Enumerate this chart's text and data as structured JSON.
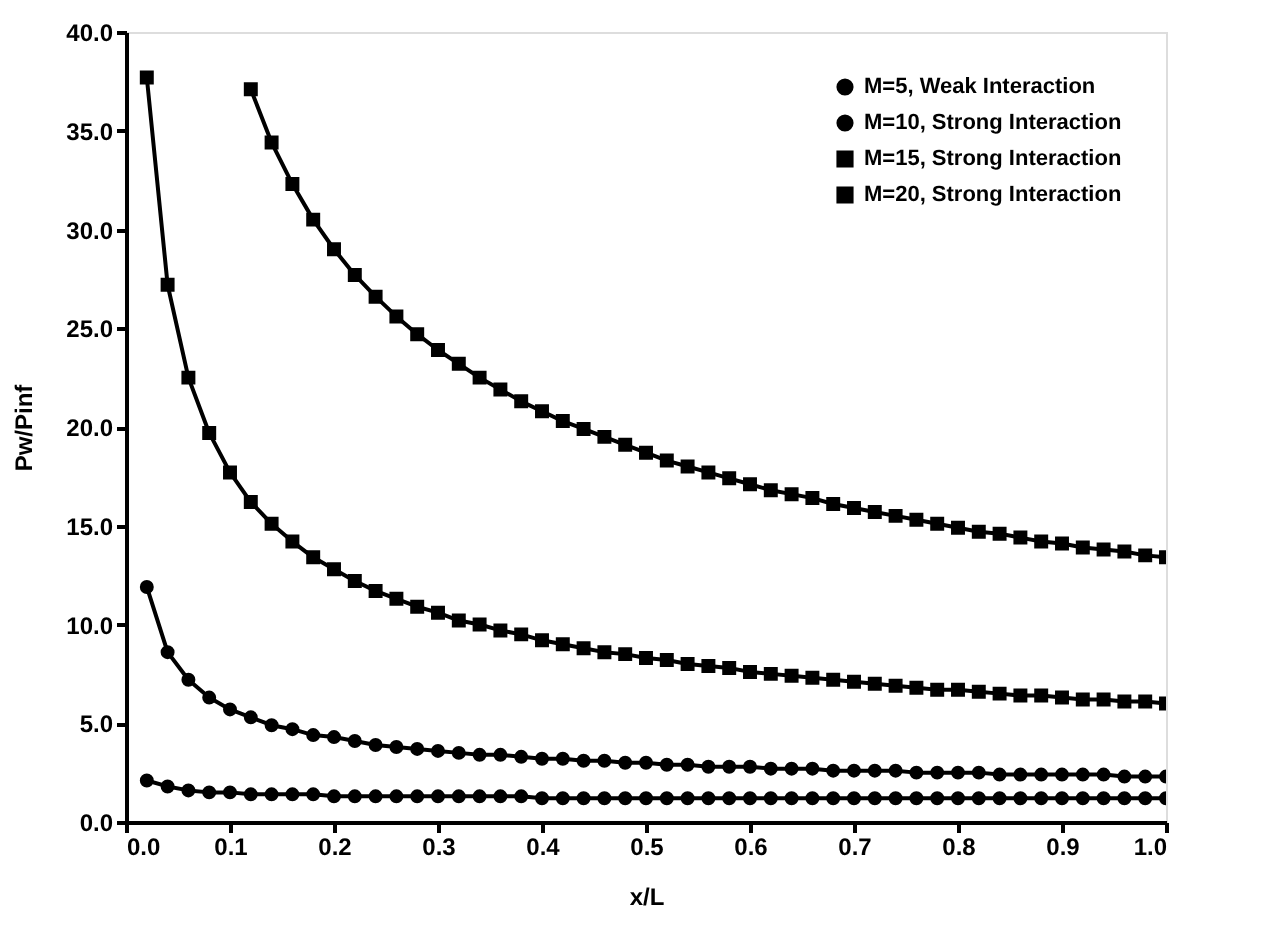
{
  "chart_data": {
    "type": "line",
    "xlabel": "x/L",
    "ylabel": "Pw/Pinf",
    "x": [
      0.02,
      0.04,
      0.06,
      0.08,
      0.1,
      0.12,
      0.14,
      0.16,
      0.18,
      0.2,
      0.22,
      0.24,
      0.26,
      0.28,
      0.3,
      0.32,
      0.34,
      0.36,
      0.38,
      0.4,
      0.42,
      0.44,
      0.46,
      0.48,
      0.5,
      0.52,
      0.54,
      0.56,
      0.58,
      0.6,
      0.62,
      0.64,
      0.66,
      0.68,
      0.7,
      0.72,
      0.74,
      0.76,
      0.78,
      0.8,
      0.82,
      0.84,
      0.86,
      0.88,
      0.9,
      0.92,
      0.94,
      0.96,
      0.98,
      1.0
    ],
    "series": [
      {
        "name": "M=5, Weak Interaction",
        "color": "#000000",
        "marker": "circle",
        "values": [
          2.1,
          1.8,
          1.6,
          1.5,
          1.5,
          1.4,
          1.4,
          1.4,
          1.4,
          1.3,
          1.3,
          1.3,
          1.3,
          1.3,
          1.3,
          1.3,
          1.3,
          1.3,
          1.3,
          1.2,
          1.2,
          1.2,
          1.2,
          1.2,
          1.2,
          1.2,
          1.2,
          1.2,
          1.2,
          1.2,
          1.2,
          1.2,
          1.2,
          1.2,
          1.2,
          1.2,
          1.2,
          1.2,
          1.2,
          1.2,
          1.2,
          1.2,
          1.2,
          1.2,
          1.2,
          1.2,
          1.2,
          1.2,
          1.2,
          1.2
        ]
      },
      {
        "name": "M=10, Strong Interaction",
        "color": "#000000",
        "marker": "circle",
        "values": [
          11.9,
          8.6,
          7.2,
          6.3,
          5.7,
          5.3,
          4.9,
          4.7,
          4.4,
          4.3,
          4.1,
          3.9,
          3.8,
          3.7,
          3.6,
          3.5,
          3.4,
          3.4,
          3.3,
          3.2,
          3.2,
          3.1,
          3.1,
          3.0,
          3.0,
          2.9,
          2.9,
          2.8,
          2.8,
          2.8,
          2.7,
          2.7,
          2.7,
          2.6,
          2.6,
          2.6,
          2.6,
          2.5,
          2.5,
          2.5,
          2.5,
          2.4,
          2.4,
          2.4,
          2.4,
          2.4,
          2.4,
          2.3,
          2.3,
          2.3
        ]
      },
      {
        "name": "M=15, Strong Interaction",
        "color": "#000000",
        "marker": "square",
        "values": [
          37.7,
          27.2,
          22.5,
          19.7,
          17.7,
          16.2,
          15.1,
          14.2,
          13.4,
          12.8,
          12.2,
          11.7,
          11.3,
          10.9,
          10.6,
          10.2,
          10.0,
          9.7,
          9.5,
          9.2,
          9.0,
          8.8,
          8.6,
          8.5,
          8.3,
          8.2,
          8.0,
          7.9,
          7.8,
          7.6,
          7.5,
          7.4,
          7.3,
          7.2,
          7.1,
          7.0,
          6.9,
          6.8,
          6.7,
          6.7,
          6.6,
          6.5,
          6.4,
          6.4,
          6.3,
          6.2,
          6.2,
          6.1,
          6.1,
          6.0
        ]
      },
      {
        "name": "M=20, Strong Interaction",
        "color": "#000000",
        "marker": "square",
        "values": [
          null,
          null,
          null,
          null,
          null,
          37.1,
          34.4,
          32.3,
          30.5,
          29.0,
          27.7,
          26.6,
          25.6,
          24.7,
          23.9,
          23.2,
          22.5,
          21.9,
          21.3,
          20.8,
          20.3,
          19.9,
          19.5,
          19.1,
          18.7,
          18.3,
          18.0,
          17.7,
          17.4,
          17.1,
          16.8,
          16.6,
          16.4,
          16.1,
          15.9,
          15.7,
          15.5,
          15.3,
          15.1,
          14.9,
          14.7,
          14.6,
          14.4,
          14.2,
          14.1,
          13.9,
          13.8,
          13.7,
          13.5,
          13.4
        ]
      }
    ],
    "xlim": [
      0,
      1.0
    ],
    "xticks": [
      {
        "value": 0,
        "label": "0.0"
      },
      {
        "value": 0.1,
        "label": "0.1"
      },
      {
        "value": 0.2,
        "label": "0.2"
      },
      {
        "value": 0.3,
        "label": "0.3"
      },
      {
        "value": 0.4,
        "label": "0.4"
      },
      {
        "value": 0.5,
        "label": "0.5"
      },
      {
        "value": 0.6,
        "label": "0.6"
      },
      {
        "value": 0.7,
        "label": "0.7"
      },
      {
        "value": 0.8,
        "label": "0.8"
      },
      {
        "value": 0.9,
        "label": "0.9"
      },
      {
        "value": 1.0,
        "label": "1.0"
      }
    ],
    "ylim": [
      0,
      40
    ],
    "yticks": [
      {
        "value": 0,
        "label": "0.0"
      },
      {
        "value": 5,
        "label": "5.0"
      },
      {
        "value": 10,
        "label": "10.0"
      },
      {
        "value": 15,
        "label": "15.0"
      },
      {
        "value": 20,
        "label": "20.0"
      },
      {
        "value": 25,
        "label": "25.0"
      },
      {
        "value": 30,
        "label": "30.0"
      },
      {
        "value": 35,
        "label": "35.0"
      },
      {
        "value": 40,
        "label": "40.0"
      }
    ],
    "grid": false,
    "legend": "top right",
    "line_style": "solid"
  }
}
